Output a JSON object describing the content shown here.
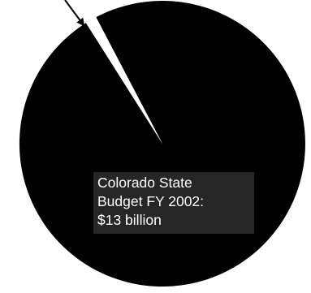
{
  "chart_data": {
    "type": "pie",
    "title": "",
    "slices": [
      {
        "label": "Colorado State Budget FY 2002",
        "value": 13,
        "unit": "billion USD",
        "color": "#000000"
      },
      {
        "label": "",
        "value": 0.17,
        "unit": "billion USD",
        "color": "#ffffff"
      }
    ],
    "annotation": {
      "lines": [
        "Colorado State",
        "Budget FY 2002:",
        "$13 billion"
      ]
    },
    "legend": "none",
    "grid": false
  }
}
